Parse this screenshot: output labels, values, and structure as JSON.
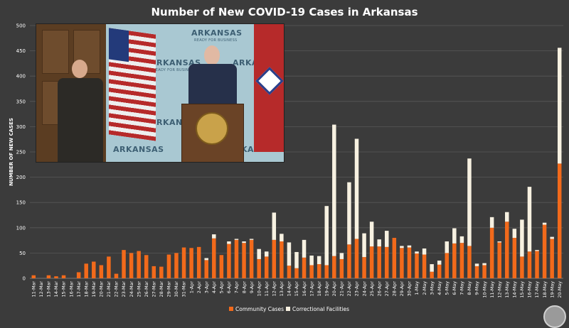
{
  "chart_data": {
    "type": "bar",
    "stacked": true,
    "title": "Number of New COVID-19 Cases in Arkansas",
    "xlabel": "",
    "ylabel": "NUMBER OF NEW CASES",
    "ylim": [
      0,
      500
    ],
    "yticks": [
      0,
      50,
      100,
      150,
      200,
      250,
      300,
      350,
      400,
      450,
      500
    ],
    "grid": true,
    "legend_position": "bottom-center",
    "categories": [
      "11-Mar",
      "12-Mar",
      "13-Mar",
      "14-Mar",
      "15-Mar",
      "16-Mar",
      "17-Mar",
      "18-Mar",
      "19-Mar",
      "20-Mar",
      "21-Mar",
      "22-Mar",
      "23-Mar",
      "24-Mar",
      "25-Mar",
      "26-Mar",
      "27-Mar",
      "28-Mar",
      "29-Mar",
      "30-Mar",
      "31-Mar",
      "1-Apr",
      "2-Apr",
      "3-Apr",
      "4-Apr",
      "5-Apr",
      "6-Apr",
      "7-Apr",
      "8-Apr",
      "9-Apr",
      "10-Apr",
      "11-Apr",
      "12-Apr",
      "13-Apr",
      "14-Apr",
      "15-Apr",
      "16-Apr",
      "17-Apr",
      "18-Apr",
      "19-Apr",
      "20-Apr",
      "21-Apr",
      "22-Apr",
      "23-Apr",
      "24-Apr",
      "25-Apr",
      "26-Apr",
      "27-Apr",
      "28-Apr",
      "29-Apr",
      "30-Apr",
      "1-May",
      "2-May",
      "3-May",
      "4-May",
      "5-May",
      "6-May",
      "7-May",
      "8-May",
      "9-May",
      "10-May",
      "11-May",
      "12-May",
      "13-May",
      "14-May",
      "15-May",
      "16-May",
      "17-May",
      "18-May",
      "19-May",
      "20-May"
    ],
    "series": [
      {
        "name": "Community Cases",
        "color": "#f26a1b",
        "values": [
          6,
          0,
          6,
          4,
          6,
          0,
          12,
          29,
          33,
          26,
          43,
          9,
          56,
          50,
          54,
          46,
          24,
          23,
          47,
          50,
          61,
          60,
          62,
          36,
          79,
          46,
          68,
          76,
          70,
          76,
          38,
          43,
          76,
          73,
          25,
          20,
          41,
          26,
          28,
          26,
          44,
          38,
          67,
          78,
          42,
          63,
          63,
          62,
          80,
          60,
          61,
          49,
          47,
          13,
          27,
          50,
          69,
          70,
          64,
          24,
          26,
          100,
          71,
          112,
          80,
          43,
          53,
          54,
          106,
          78,
          227
        ],
        "show_x_labels": true
      },
      {
        "name": "Correctional Facilities",
        "color": "#f7f1e1",
        "values": [
          0,
          0,
          0,
          0,
          0,
          0,
          0,
          0,
          0,
          0,
          0,
          0,
          0,
          0,
          0,
          0,
          0,
          0,
          0,
          0,
          0,
          0,
          0,
          4,
          8,
          0,
          5,
          2,
          3,
          2,
          20,
          10,
          54,
          15,
          46,
          32,
          35,
          19,
          16,
          117,
          260,
          12,
          123,
          198,
          47,
          49,
          14,
          32,
          0,
          4,
          4,
          4,
          12,
          15,
          8,
          23,
          30,
          13,
          173,
          5,
          4,
          21,
          2,
          19,
          18,
          73,
          128,
          2,
          4,
          4,
          229
        ]
      }
    ]
  },
  "video": {
    "banner_word": "ARKANSAS",
    "banner_sub": "READY FOR BUSINESS"
  }
}
